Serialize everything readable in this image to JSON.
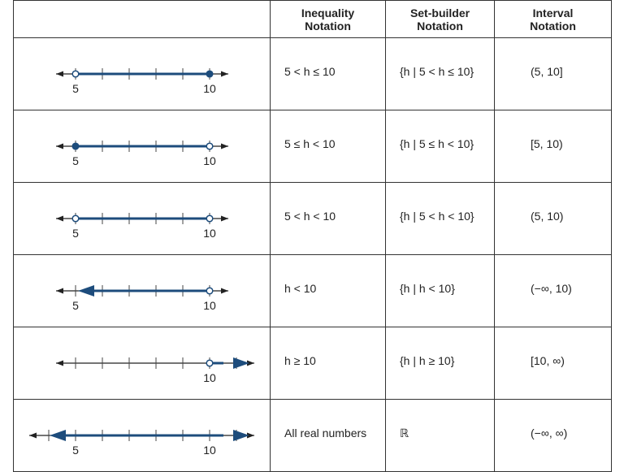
{
  "header": {
    "columns": [
      "Inequality Notation",
      "Set-builder Notation",
      "Interval Notation"
    ]
  },
  "rows": [
    {
      "number_line_labels": [
        "5",
        "10"
      ],
      "inequality": "5 < h ≤ 10",
      "set_builder": "{h | 5 < h ≤ 10}",
      "interval": "(5, 10]"
    },
    {
      "number_line_labels": [
        "5",
        "10"
      ],
      "inequality": "5 ≤ h < 10",
      "set_builder": "{h | 5 ≤ h < 10}",
      "interval": "[5, 10)"
    },
    {
      "number_line_labels": [
        "5",
        "10"
      ],
      "inequality": "5 < h < 10",
      "set_builder": "{h | 5 < h < 10}",
      "interval": "(5, 10)"
    },
    {
      "number_line_labels": [
        "5",
        "10"
      ],
      "inequality": "h < 10",
      "set_builder": "{h | h < 10}",
      "interval": "(−∞, 10)"
    },
    {
      "number_line_labels": [
        "10"
      ],
      "inequality": "h ≥ 10",
      "set_builder": "{h | h ≥ 10}",
      "interval": "[10, ∞)"
    },
    {
      "number_line_labels": [
        "5",
        "10"
      ],
      "inequality": "All real numbers",
      "set_builder": "ℝ",
      "interval": "(−∞, ∞)"
    }
  ]
}
